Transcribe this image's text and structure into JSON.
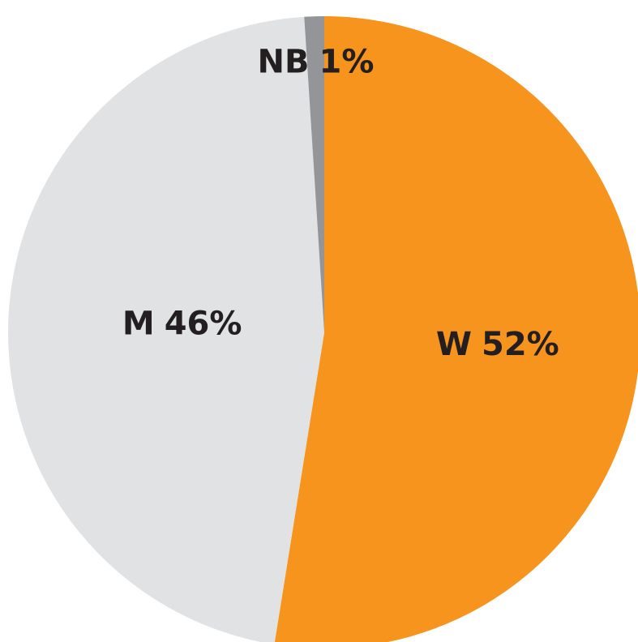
{
  "chart_data": {
    "type": "pie",
    "categories": [
      "W",
      "M",
      "NB"
    ],
    "values": [
      52,
      46,
      1
    ],
    "value_labels": [
      "52%",
      "46%",
      "1%"
    ],
    "colors": [
      "#f7941d",
      "#e1e2e4",
      "#939598"
    ]
  }
}
